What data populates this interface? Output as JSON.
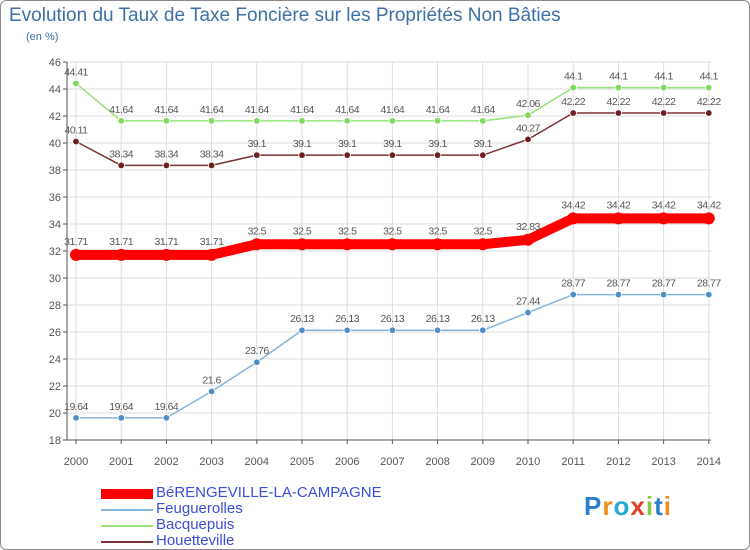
{
  "title": "Evolution du Taux de Taxe Foncière sur les Propriétés Non Bâties",
  "unit_label": "(en %)",
  "logo_text": "Proxiti",
  "colors": {
    "title": "#3e6fa6",
    "grid": "#dddddd",
    "axis": "#555555",
    "label": "#555555",
    "legend_text": "#3a4fd6"
  },
  "chart_data": {
    "type": "line",
    "title": "Evolution du Taux de Taxe Foncière sur les Propriétés Non Bâties",
    "xlabel": "",
    "ylabel": "(en %)",
    "ylim": [
      18,
      46
    ],
    "yticks": [
      18,
      20,
      22,
      24,
      26,
      28,
      30,
      32,
      34,
      36,
      38,
      40,
      42,
      44,
      46
    ],
    "grid": true,
    "x": [
      "2000",
      "2001",
      "2002",
      "2003",
      "2004",
      "2005",
      "2006",
      "2007",
      "2008",
      "2009",
      "2010",
      "2011",
      "2012",
      "2013",
      "2014"
    ],
    "series": [
      {
        "name": "BéRENGEVILLE-LA-CAMPAGNE",
        "color": "#ff0000",
        "line_color": "#ff0000",
        "emphasis": true,
        "values": [
          31.71,
          31.71,
          31.71,
          31.71,
          32.5,
          32.5,
          32.5,
          32.5,
          32.5,
          32.5,
          32.83,
          34.42,
          34.42,
          34.42,
          34.42
        ],
        "labels": [
          "31.71",
          "31.71",
          "31.71",
          "31.71",
          "32.5",
          "32.5",
          "32.5",
          "32.5",
          "32.5",
          "32.5",
          "32.83",
          "34.42",
          "34.42",
          "34.42",
          "34.42"
        ]
      },
      {
        "name": "Feuguerolles",
        "color": "#4f8fc4",
        "line_color": "#86b3dc",
        "emphasis": false,
        "values": [
          19.64,
          19.64,
          19.64,
          21.6,
          23.76,
          26.13,
          26.13,
          26.13,
          26.13,
          26.13,
          27.44,
          28.77,
          28.77,
          28.77,
          28.77
        ],
        "labels": [
          "19.64",
          "19.64",
          "19.64",
          "21.6",
          "23.76",
          "26.13",
          "26.13",
          "26.13",
          "26.13",
          "26.13",
          "27.44",
          "28.77",
          "28.77",
          "28.77",
          "28.77"
        ]
      },
      {
        "name": "Bacquepuis",
        "color": "#7ed95c",
        "line_color": "#98e27a",
        "emphasis": false,
        "values": [
          44.41,
          41.64,
          41.64,
          41.64,
          41.64,
          41.64,
          41.64,
          41.64,
          41.64,
          41.64,
          42.06,
          44.1,
          44.1,
          44.1,
          44.1
        ],
        "labels": [
          "44.41",
          "41.64",
          "41.64",
          "41.64",
          "41.64",
          "41.64",
          "41.64",
          "41.64",
          "41.64",
          "41.64",
          "42.06",
          "44.1",
          "44.1",
          "44.1",
          "44.1"
        ]
      },
      {
        "name": "Houetteville",
        "color": "#6e1f22",
        "line_color": "#7a3236",
        "emphasis": false,
        "values": [
          40.11,
          38.34,
          38.34,
          38.34,
          39.1,
          39.1,
          39.1,
          39.1,
          39.1,
          39.1,
          40.27,
          42.22,
          42.22,
          42.22,
          42.22
        ],
        "labels": [
          "40.11",
          "38.34",
          "38.34",
          "38.34",
          "39.1",
          "39.1",
          "39.1",
          "39.1",
          "39.1",
          "39.1",
          "40.27",
          "42.22",
          "42.22",
          "42.22",
          "42.22"
        ]
      }
    ],
    "legend": {
      "placement": "bottom-left",
      "entries": [
        "BéRENGEVILLE-LA-CAMPAGNE",
        "Feuguerolles",
        "Bacquepuis",
        "Houetteville"
      ]
    }
  }
}
